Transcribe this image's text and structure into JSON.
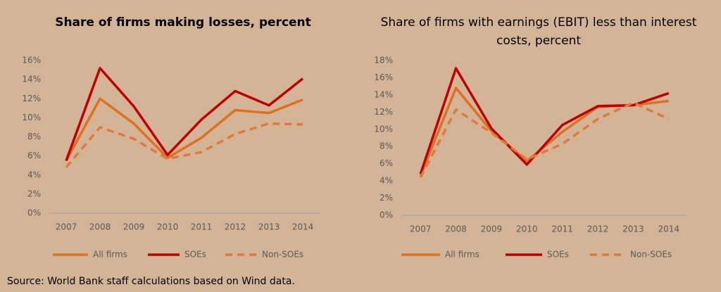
{
  "chart_data": [
    {
      "type": "line",
      "title": "Share of firms making losses, percent",
      "categories": [
        "2007",
        "2008",
        "2009",
        "2010",
        "2011",
        "2012",
        "2013",
        "2014"
      ],
      "series": [
        {
          "name": "All firms",
          "color": "#e0701e",
          "dashed": false,
          "values": [
            5.5,
            12.0,
            9.4,
            5.8,
            7.9,
            10.8,
            10.5,
            11.9
          ]
        },
        {
          "name": "SOEs",
          "color": "#c00000",
          "dashed": false,
          "values": [
            5.5,
            15.2,
            11.2,
            6.1,
            9.8,
            12.8,
            11.3,
            14.1
          ]
        },
        {
          "name": "Non-SOEs",
          "color": "#e07a3a",
          "dashed": true,
          "values": [
            4.8,
            9.0,
            7.8,
            5.7,
            6.4,
            8.3,
            9.4,
            9.3
          ]
        }
      ],
      "ylim": [
        0,
        16
      ],
      "yticks": [
        {
          "value": 0,
          "label": "0%"
        },
        {
          "value": 2,
          "label": "2%"
        },
        {
          "value": 4,
          "label": "4%"
        },
        {
          "value": 6,
          "label": "6%"
        },
        {
          "value": 8,
          "label": "8%"
        },
        {
          "value": 10,
          "label": "10%"
        },
        {
          "value": 12,
          "label": "12%"
        },
        {
          "value": 14,
          "label": "14%"
        },
        {
          "value": 16,
          "label": "16%"
        }
      ],
      "grid": false
    },
    {
      "type": "line",
      "title": "Share of firms with earnings (EBIT) less than interest costs, percent",
      "categories": [
        "2007",
        "2008",
        "2009",
        "2010",
        "2011",
        "2012",
        "2013",
        "2014"
      ],
      "series": [
        {
          "name": "All firms",
          "color": "#e0701e",
          "dashed": false,
          "values": [
            4.6,
            14.8,
            9.8,
            6.3,
            9.7,
            12.6,
            12.8,
            13.3
          ]
        },
        {
          "name": "SOEs",
          "color": "#c00000",
          "dashed": false,
          "values": [
            4.8,
            17.1,
            10.1,
            5.9,
            10.5,
            12.7,
            12.8,
            14.2
          ]
        },
        {
          "name": "Non-SOEs",
          "color": "#e07a3a",
          "dashed": true,
          "values": [
            4.4,
            12.3,
            9.6,
            6.5,
            8.3,
            11.2,
            13.1,
            11.2
          ]
        }
      ],
      "ylim": [
        0,
        18
      ],
      "yticks": [
        {
          "value": 0,
          "label": "0%"
        },
        {
          "value": 2,
          "label": "2%"
        },
        {
          "value": 4,
          "label": "4%"
        },
        {
          "value": 6,
          "label": "6%"
        },
        {
          "value": 8,
          "label": "8%"
        },
        {
          "value": 10,
          "label": "10%"
        },
        {
          "value": 12,
          "label": "12%"
        },
        {
          "value": 14,
          "label": "14%"
        },
        {
          "value": 16,
          "label": "16%"
        },
        {
          "value": 18,
          "label": "18%"
        }
      ],
      "grid": false
    }
  ],
  "source": "Source: World Bank staff calculations based on Wind data."
}
